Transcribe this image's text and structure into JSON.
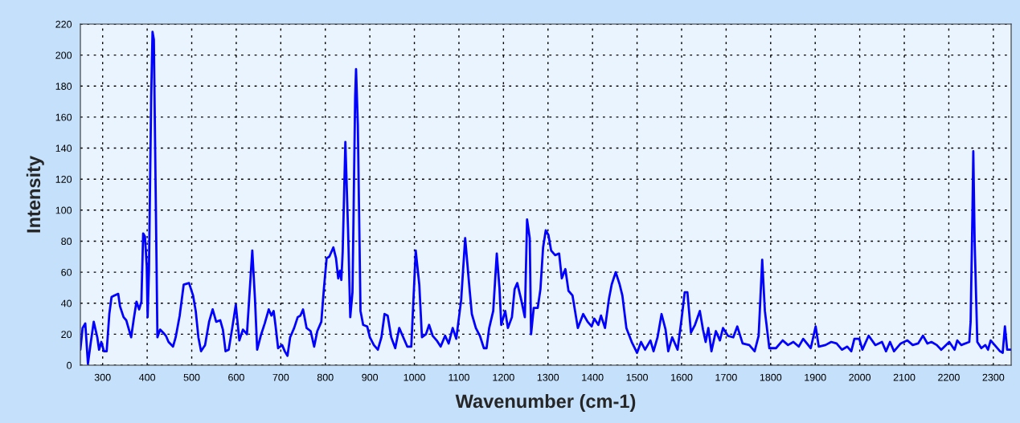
{
  "chart_data": {
    "type": "line",
    "xlabel": "Wavenumber (cm-1)",
    "ylabel": "Intensity",
    "xlim": [
      250,
      2340
    ],
    "xticks": [
      300,
      400,
      500,
      600,
      700,
      800,
      900,
      1000,
      1100,
      1200,
      1300,
      1400,
      1500,
      1600,
      1700,
      1800,
      1900,
      2000,
      2100,
      2200,
      2300
    ],
    "ylim": [
      0,
      220
    ],
    "yticks": [
      0,
      20,
      40,
      60,
      80,
      100,
      120,
      140,
      160,
      180,
      200,
      220
    ],
    "grid": true,
    "line_style": "solid",
    "x": [
      250,
      255,
      261,
      267,
      273,
      280,
      288,
      292,
      297,
      303,
      309,
      315,
      320,
      327,
      335,
      339,
      347,
      353,
      358,
      364,
      370,
      376,
      382,
      387,
      391,
      395,
      399,
      401,
      404,
      409,
      412,
      415,
      418,
      423,
      429,
      436,
      442,
      448,
      458,
      464,
      473,
      482,
      494,
      503,
      509,
      515,
      521,
      530,
      539,
      547,
      555,
      564,
      570,
      576,
      583,
      591,
      599,
      607,
      615,
      624,
      636,
      642,
      647,
      655,
      664,
      673,
      679,
      684,
      688,
      694,
      703,
      709,
      715,
      721,
      730,
      738,
      744,
      750,
      758,
      767,
      775,
      782,
      791,
      797,
      803,
      809,
      818,
      824,
      829,
      833,
      836,
      839,
      845,
      851,
      856,
      861,
      867,
      869,
      873,
      879,
      885,
      894,
      900,
      909,
      918,
      926,
      933,
      940,
      948,
      957,
      966,
      975,
      984,
      993,
      1003,
      1011,
      1017,
      1026,
      1033,
      1041,
      1050,
      1059,
      1069,
      1077,
      1086,
      1094,
      1105,
      1114,
      1123,
      1129,
      1138,
      1147,
      1156,
      1162,
      1168,
      1177,
      1185,
      1191,
      1195,
      1204,
      1210,
      1219,
      1225,
      1231,
      1240,
      1248,
      1253,
      1259,
      1262,
      1268,
      1277,
      1283,
      1289,
      1295,
      1301,
      1307,
      1316,
      1325,
      1331,
      1339,
      1346,
      1355,
      1367,
      1379,
      1389,
      1398,
      1404,
      1413,
      1419,
      1428,
      1437,
      1443,
      1452,
      1461,
      1467,
      1476,
      1488,
      1500,
      1509,
      1518,
      1530,
      1537,
      1546,
      1555,
      1564,
      1570,
      1579,
      1591,
      1600,
      1607,
      1613,
      1621,
      1630,
      1641,
      1648,
      1654,
      1660,
      1667,
      1677,
      1686,
      1693,
      1704,
      1716,
      1725,
      1737,
      1752,
      1764,
      1773,
      1781,
      1787,
      1797,
      1812,
      1827,
      1839,
      1851,
      1863,
      1873,
      1890,
      1901,
      1908,
      1923,
      1936,
      1948,
      1960,
      1972,
      1981,
      1988,
      1999,
      2006,
      2020,
      2035,
      2050,
      2059,
      2068,
      2077,
      2092,
      2107,
      2119,
      2131,
      2142,
      2152,
      2161,
      2173,
      2183,
      2201,
      2213,
      2219,
      2228,
      2246,
      2249,
      2253,
      2255,
      2258,
      2264,
      2273,
      2282,
      2288,
      2294,
      2303,
      2315,
      2321,
      2326,
      2331,
      2339
    ],
    "series": [
      {
        "color": "#0000ff",
        "values": [
          10,
          24,
          27,
          1,
          14,
          28,
          18,
          10,
          15,
          9,
          9,
          33,
          44,
          45,
          46,
          38,
          31,
          29,
          24,
          18,
          30,
          41,
          36,
          41,
          85,
          83,
          64,
          31,
          61,
          173,
          215,
          210,
          138,
          18,
          23,
          21,
          19,
          15,
          12,
          18,
          32,
          52,
          53,
          45,
          35,
          18,
          9,
          13,
          28,
          36,
          28,
          29,
          23,
          9,
          10,
          24,
          39,
          16,
          23,
          20,
          74,
          43,
          10,
          19,
          27,
          36,
          32,
          35,
          26,
          11,
          13,
          9,
          6,
          18,
          24,
          31,
          32,
          36,
          24,
          22,
          12,
          22,
          28,
          50,
          69,
          70,
          76,
          69,
          56,
          61,
          55,
          73,
          144,
          88,
          31,
          47,
          173,
          191,
          155,
          35,
          26,
          25,
          18,
          13,
          10,
          18,
          33,
          32,
          18,
          11,
          24,
          18,
          12,
          12,
          74,
          52,
          18,
          20,
          26,
          19,
          16,
          12,
          19,
          14,
          24,
          17,
          42,
          82,
          52,
          33,
          24,
          19,
          11,
          11,
          24,
          35,
          72,
          50,
          26,
          35,
          24,
          31,
          49,
          53,
          42,
          31,
          94,
          82,
          20,
          37,
          37,
          49,
          76,
          87,
          84,
          74,
          71,
          72,
          56,
          62,
          48,
          45,
          24,
          33,
          28,
          25,
          30,
          26,
          32,
          24,
          43,
          52,
          60,
          52,
          45,
          24,
          15,
          8,
          15,
          10,
          16,
          9,
          18,
          33,
          23,
          9,
          18,
          10,
          30,
          47,
          47,
          21,
          26,
          35,
          23,
          15,
          24,
          9,
          22,
          16,
          24,
          19,
          18,
          25,
          14,
          13,
          9,
          19,
          68,
          35,
          11,
          11,
          16,
          13,
          15,
          12,
          17,
          11,
          25,
          12,
          13,
          15,
          14,
          10,
          12,
          9,
          17,
          17,
          10,
          19,
          13,
          15,
          9,
          15,
          9,
          14,
          16,
          13,
          14,
          19,
          14,
          15,
          13,
          10,
          15,
          10,
          16,
          13,
          15,
          28,
          97,
          138,
          80,
          15,
          11,
          13,
          10,
          16,
          13,
          9,
          8,
          25,
          10,
          10
        ]
      }
    ]
  }
}
